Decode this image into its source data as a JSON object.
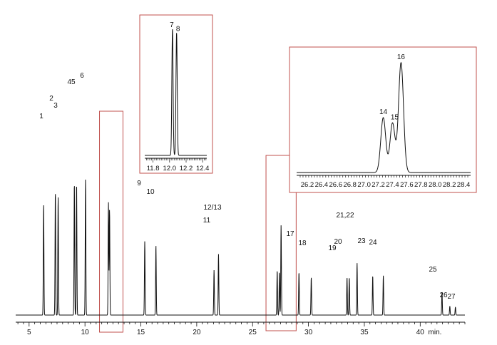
{
  "chart_data": [
    {
      "type": "line",
      "title": "",
      "xlabel": "min.",
      "ylabel": "",
      "xlim": [
        3.8,
        44.0
      ],
      "ylim": [
        0,
        100
      ],
      "grid": false,
      "x_ticks": [
        5,
        10,
        15,
        20,
        25,
        30,
        35,
        40
      ],
      "minor_tick_step": 0.5,
      "peaks": [
        {
          "label": "1",
          "rt": 6.3,
          "height": 62
        },
        {
          "label": "2",
          "rt": 7.35,
          "height": 69
        },
        {
          "label": "3",
          "rt": 7.6,
          "height": 66
        },
        {
          "label": "45",
          "rt": 9.05,
          "height": 74
        },
        {
          "label": "",
          "rt": 9.25,
          "height": 74
        },
        {
          "label": "6",
          "rt": 10.05,
          "height": 76
        },
        {
          "label": "",
          "rt": 12.1,
          "height": 63
        },
        {
          "label": "",
          "rt": 12.2,
          "height": 59
        },
        {
          "label": "9",
          "rt": 15.35,
          "height": 41
        },
        {
          "label": "10",
          "rt": 16.35,
          "height": 39
        },
        {
          "label": "11",
          "rt": 21.55,
          "height": 25
        },
        {
          "label": "12/13",
          "rt": 21.95,
          "height": 34
        },
        {
          "label": "",
          "rt": 27.2,
          "height": 25
        },
        {
          "label": "",
          "rt": 27.4,
          "height": 24
        },
        {
          "label": "",
          "rt": 27.55,
          "height": 50
        },
        {
          "label": "17",
          "rt": 29.15,
          "height": 24
        },
        {
          "label": "18",
          "rt": 30.25,
          "height": 21
        },
        {
          "label": "19",
          "rt": 33.45,
          "height": 21
        },
        {
          "label": "20",
          "rt": 33.65,
          "height": 21
        },
        {
          "label": "21,22",
          "rt": 34.35,
          "height": 29
        },
        {
          "label": "23",
          "rt": 35.75,
          "height": 22
        },
        {
          "label": "24",
          "rt": 36.7,
          "height": 22
        },
        {
          "label": "25",
          "rt": 41.95,
          "height": 13
        },
        {
          "label": "26",
          "rt": 42.65,
          "height": 5
        },
        {
          "label": "27",
          "rt": 43.15,
          "height": 4.5
        }
      ],
      "highlight_windows": [
        [
          11.3,
          13.4
        ],
        [
          26.2,
          28.9
        ]
      ]
    },
    {
      "type": "line",
      "title": "",
      "xlabel": "",
      "xlim": [
        11.7,
        12.45
      ],
      "ylim": [
        0,
        100
      ],
      "x_ticks": [
        11.8,
        12.0,
        12.2,
        12.4
      ],
      "peaks": [
        {
          "label": "7",
          "rt": 12.035,
          "height": 100
        },
        {
          "label": "8",
          "rt": 12.085,
          "height": 97
        }
      ]
    },
    {
      "type": "line",
      "title": "",
      "xlabel": "",
      "xlim": [
        26.05,
        28.5
      ],
      "ylim": [
        0,
        100
      ],
      "x_ticks": [
        26.2,
        26.4,
        26.6,
        26.8,
        27.0,
        27.2,
        27.4,
        27.6,
        27.8,
        28.0,
        28.2,
        28.4
      ],
      "x_tick_labels": [
        "26.2",
        "26.4",
        "26.6",
        "26.8",
        "27.0",
        "27.2",
        "27.4",
        "27.6",
        "27.8",
        "28.0",
        "28.2",
        "28.4"
      ],
      "peaks": [
        {
          "label": "14",
          "rt": 27.27,
          "height": 50
        },
        {
          "label": "15",
          "rt": 27.4,
          "height": 45
        },
        {
          "label": "16",
          "rt": 27.52,
          "height": 100
        }
      ]
    }
  ],
  "colors": {
    "trace": "#111111",
    "axis": "#111111",
    "highlight": "#c0504d"
  }
}
